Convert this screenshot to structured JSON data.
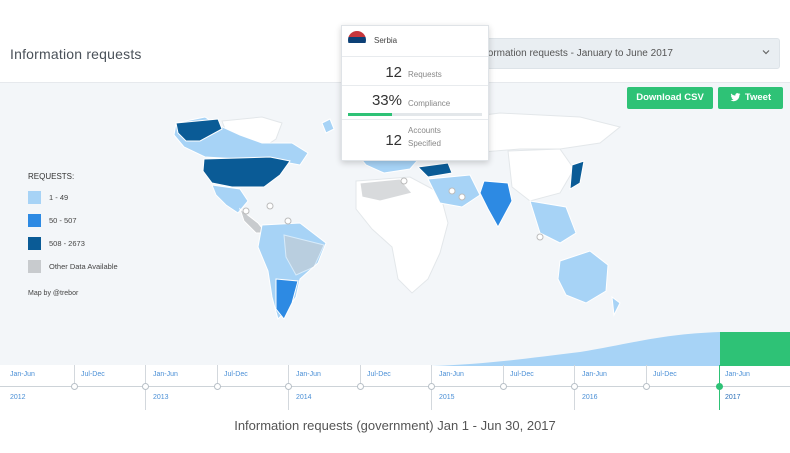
{
  "header": {
    "title": "Information requests",
    "period_select": "formation requests - January to June 2017"
  },
  "actions": {
    "download_csv": "Download CSV",
    "tweet": "Tweet"
  },
  "tooltip": {
    "country": "Serbia",
    "requests_value": "12",
    "requests_label": "Requests",
    "compliance_value": "33%",
    "compliance_label": "Compliance",
    "compliance_fraction": 0.33,
    "accounts_value": "12",
    "accounts_label_1": "Accounts",
    "accounts_label_2": "Specified"
  },
  "legend": {
    "title": "REQUESTS:",
    "items": [
      {
        "label": "1 - 49",
        "color": "#a7d3f6"
      },
      {
        "label": "50 - 507",
        "color": "#2d8ae3"
      },
      {
        "label": "508 - 2673",
        "color": "#0a5b96"
      },
      {
        "label": "Other Data Available",
        "color": "#c8cbce"
      }
    ],
    "credit": "Map by @trebor"
  },
  "colors": {
    "accent": "#2ec276",
    "land": "#ffffff",
    "map_bg": "#f3f6f9"
  },
  "timeline": {
    "periods": [
      "Jan-Jun",
      "Jul-Dec",
      "Jan-Jun",
      "Jul-Dec",
      "Jan-Jun",
      "Jul-Dec",
      "Jan-Jun",
      "Jul-Dec",
      "Jan-Jun",
      "Jul-Dec",
      "Jan-Jun"
    ],
    "years": [
      "2012",
      "2013",
      "2014",
      "2015",
      "2016",
      "2017"
    ],
    "active_period": "Jan-Jun",
    "active_year": "2017"
  },
  "caption": "Information requests (government) Jan 1 - Jun 30, 2017"
}
